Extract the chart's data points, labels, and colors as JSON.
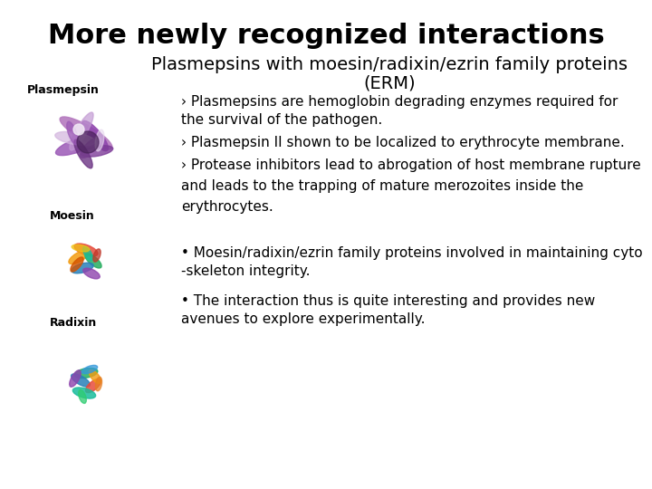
{
  "title": "More newly recognized interactions",
  "subtitle_line1": "Plasmepsins with moesin/radixin/ezrin family proteins",
  "subtitle_line2": "(ERM)",
  "label_plasmepsin": "Plasmepsin",
  "label_moesin": "Moesin",
  "label_radixin": "Radixin",
  "bullet1_line1": "› Plasmepsins are hemoglobin degrading enzymes required for",
  "bullet1_line2": "the survival of the pathogen.",
  "bullet2": "› Plasmepsin II shown to be localized to erythrocyte membrane.",
  "bullet3_line1": "› Protease inhibitors lead to abrogation of host membrane rupture",
  "bullet3_line2": "and leads to the trapping of mature merozoites inside the",
  "bullet3_line3": "erythrocytes.",
  "bullet4_line1": "• Moesin/radixin/ezrin family proteins involved in maintaining cyto",
  "bullet4_line2": "-skeleton integrity.",
  "bullet5_line1": "• The interaction thus is quite interesting and provides new",
  "bullet5_line2": "avenues to explore experimentally.",
  "background_color": "#ffffff",
  "title_color": "#000000",
  "subtitle_color": "#000000",
  "text_color": "#000000",
  "title_fontsize": 22,
  "subtitle_fontsize": 14,
  "label_fontsize": 9,
  "body_fontsize": 11
}
